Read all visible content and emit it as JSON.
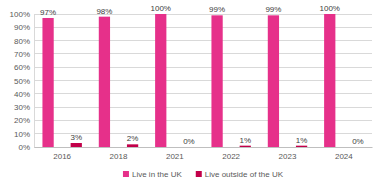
{
  "chart_data": {
    "type": "bar",
    "categories": [
      "2016",
      "2018",
      "2021",
      "2022",
      "2023",
      "2024"
    ],
    "series": [
      {
        "name": "Live in the UK",
        "color": "#e6308a",
        "values": [
          97,
          98,
          100,
          99,
          99,
          100
        ],
        "value_labels": [
          "97%",
          "98%",
          "100%",
          "99%",
          "99%",
          "100%"
        ]
      },
      {
        "name": "Live outside of the UK",
        "color": "#c2004a",
        "values": [
          3,
          2,
          0,
          1,
          1,
          0
        ],
        "value_labels": [
          "3%",
          "2%",
          "0%",
          "1%",
          "1%",
          "0%"
        ]
      }
    ],
    "ylim": [
      0,
      100
    ],
    "yticks": [
      {
        "value": 0,
        "label": "0%"
      },
      {
        "value": 10,
        "label": "10%"
      },
      {
        "value": 20,
        "label": "20%"
      },
      {
        "value": 30,
        "label": "30%"
      },
      {
        "value": 40,
        "label": "40%"
      },
      {
        "value": 50,
        "label": "50%"
      },
      {
        "value": 60,
        "label": "60%"
      },
      {
        "value": 70,
        "label": "70%"
      },
      {
        "value": 80,
        "label": "80%"
      },
      {
        "value": 90,
        "label": "90%"
      },
      {
        "value": 100,
        "label": "100%"
      }
    ],
    "grid": true,
    "data_labels": true,
    "legend": "bottom"
  }
}
